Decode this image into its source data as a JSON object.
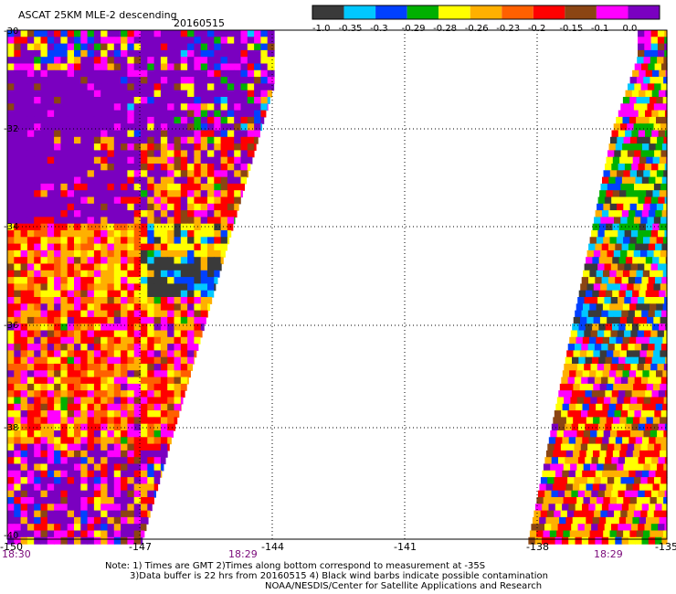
{
  "title": "ASCAT 25KM MLE-2 descending",
  "date": "20160515",
  "colorbar": {
    "labels": [
      "-1.0",
      "-0.35",
      "-0.3",
      "-0.29",
      "-0.28",
      "-0.26",
      "-0.23",
      "-0.2",
      "-0.15",
      "-0.1",
      "0.0"
    ],
    "colors": [
      "#3a3a3a",
      "#00c8ff",
      "#0040ff",
      "#00b000",
      "#ffff00",
      "#ffb000",
      "#ff6000",
      "#ff0000",
      "#8b4513",
      "#ff00ff",
      "#7a00c0"
    ]
  },
  "axes": {
    "lon_ticks": [
      "-150",
      "-147",
      "-144",
      "-141",
      "-138",
      "-135"
    ],
    "lat_ticks": [
      "-30",
      "-32",
      "-34",
      "-36",
      "-38",
      "-40"
    ]
  },
  "times": [
    "18:30",
    "18:29",
    "18:29"
  ],
  "notes": [
    "Note: 1) Times are GMT 2)Times along bottom correspond to measurement at -35S",
    "3)Data buffer is 22 hrs from 20160515 4) Black wind barbs indicate possible contamination",
    "NOAA/NESDIS/Center for Satellite Applications and Research"
  ]
}
